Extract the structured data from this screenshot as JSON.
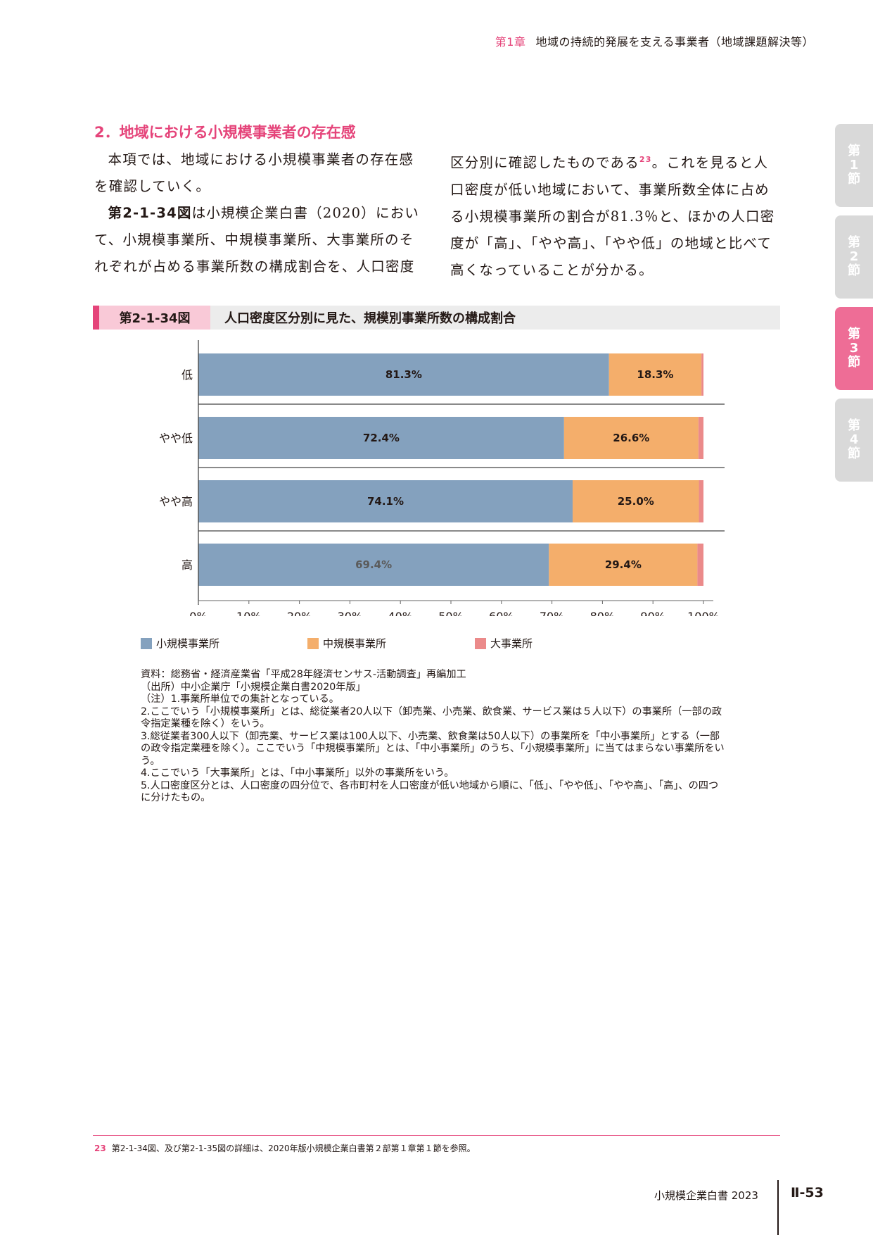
{
  "header": {
    "chapter": "第1章",
    "title": "地域の持続的発展を支える事業者（地域課題解決等）"
  },
  "side_tabs": [
    {
      "line1": "第",
      "line2": "1",
      "line3": "節",
      "active": false
    },
    {
      "line1": "第",
      "line2": "2",
      "line3": "節",
      "active": false
    },
    {
      "line1": "第",
      "line2": "3",
      "line3": "節",
      "active": true
    },
    {
      "line1": "第",
      "line2": "4",
      "line3": "節",
      "active": false
    }
  ],
  "section": {
    "heading": "2．地域における小規模事業者の存在感"
  },
  "body": {
    "p1": "本項では、地域における小規模事業者の存在感を確認していく。",
    "p2_ref": "第2-1-34図",
    "p2_rest": "は小規模企業白書（2020）において、小規模事業所、中規模事業所、大事業所のそれぞれが占める事業所数の構成割合を、人口密度",
    "p3_a": "区分別に確認したものである",
    "p3_fn": "23",
    "p3_b": "。これを見ると人口密度が低い地域において、事業所数全体に占める小規模事業所の割合が81.3％と、ほかの人口密度が「高」、「やや高」、「やや低」の地域と比べて高くなっていることが分かる。"
  },
  "figure": {
    "number": "第2-1-34図",
    "title": "人口密度区分別に見た、規模別事業所数の構成割合"
  },
  "chart_data": {
    "type": "bar",
    "orientation": "horizontal",
    "stacked": true,
    "categories": [
      "低",
      "やや低",
      "やや高",
      "高"
    ],
    "series": [
      {
        "name": "小規模事業所",
        "color": "#84a1be",
        "values": [
          81.3,
          72.4,
          74.1,
          69.4
        ],
        "labels": [
          "81.3%",
          "72.4%",
          "74.1%",
          "69.4%"
        ]
      },
      {
        "name": "中規模事業所",
        "color": "#f4ae6b",
        "values": [
          18.3,
          26.6,
          25.0,
          29.4
        ],
        "labels": [
          "18.3%",
          "26.6%",
          "25.0%",
          "29.4%"
        ]
      },
      {
        "name": "大事業所",
        "color": "#eb8a8a",
        "values": [
          0.4,
          1.0,
          0.9,
          1.2
        ]
      }
    ],
    "xlim": [
      0,
      100
    ],
    "xticks": [
      "0%",
      "10%",
      "20%",
      "30%",
      "40%",
      "50%",
      "60%",
      "70%",
      "80%",
      "90%",
      "100%"
    ],
    "legend_position": "bottom"
  },
  "notes": [
    "資料：総務省・経済産業省「平成28年経済センサス‐活動調査」再編加工",
    "（出所）中小企業庁「小規模企業白書2020年版」",
    "（注）1.事業所単位での集計となっている。",
    "2.ここでいう「小規模事業所」とは、総従業者20人以下（卸売業、小売業、飲食業、サービス業は５人以下）の事業所（一部の政令指定業種を除く）をいう。",
    "3.総従業者300人以下（卸売業、サービス業は100人以下、小売業、飲食業は50人以下）の事業所を「中小事業所」とする（一部の政令指定業種を除く）。ここでいう「中規模事業所」とは、「中小事業所」のうち、「小規模事業所」に当てはまらない事業所をいう。",
    "4.ここでいう「大事業所」とは、「中小事業所」以外の事業所をいう。",
    "5.人口密度区分とは、人口密度の四分位で、各市町村を人口密度が低い地域から順に、「低」、「やや低」、「やや高」、「高」、の四つに分けたもの。"
  ],
  "footnote": {
    "number": "23",
    "text": "第2-1-34図、及び第2-1-35図の詳細は、2020年版小規模企業白書第２部第１章第１節を参照。"
  },
  "footer": {
    "book": "小規模企業白書 2023",
    "page": "Ⅱ-53"
  }
}
